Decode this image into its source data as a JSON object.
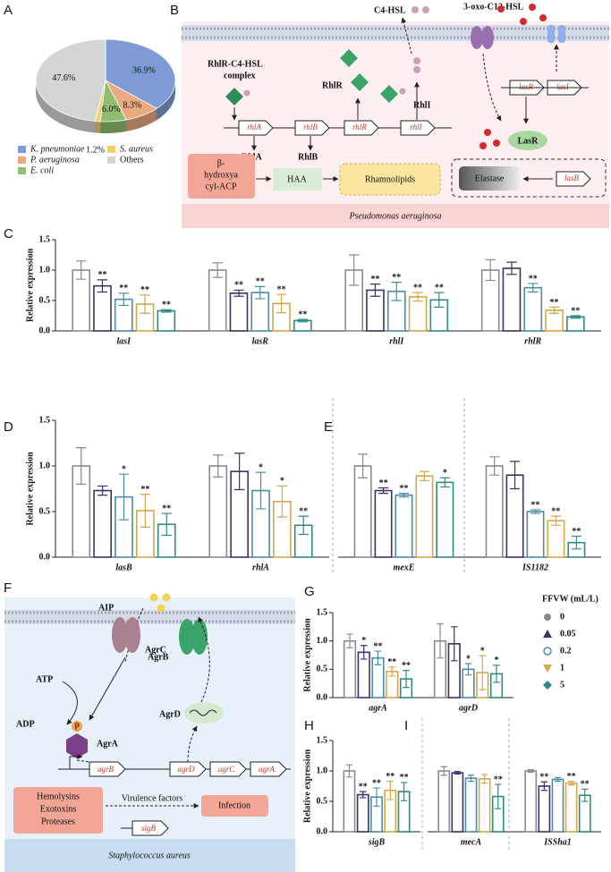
{
  "panels": [
    "A",
    "B",
    "C",
    "D",
    "E",
    "F",
    "G",
    "H",
    "I"
  ],
  "legend": {
    "title": "FFVW (mL/L)",
    "series": [
      {
        "name": "0",
        "color": "#8a8a8a",
        "marker": "circle"
      },
      {
        "name": "0.05",
        "color": "#3f3068",
        "marker": "triangle"
      },
      {
        "name": "0.2",
        "color": "#4b8ca8",
        "marker": "open-circle"
      },
      {
        "name": "1",
        "color": "#d6a64a",
        "marker": "triangle-down"
      },
      {
        "name": "5",
        "color": "#2f8a86",
        "marker": "diamond"
      }
    ]
  },
  "chart_data": [
    {
      "type": "pie",
      "categories": [
        "K. pneumoniae",
        "P. aeruginosa",
        "E. coli",
        "S. aureus",
        "Others"
      ],
      "values": [
        36.9,
        8.3,
        6.0,
        1.2,
        47.6
      ],
      "value_labels": [
        "36.9%",
        "8.3%",
        "6.0%",
        "1.2%",
        "47.6%"
      ],
      "colors": [
        "#7f9bd6",
        "#e9aa7e",
        "#90bd71",
        "#f1d06b",
        "#d4d4d4"
      ]
    },
    {
      "type": "bar",
      "ylabel": "Relative expression",
      "ylim": [
        0,
        1.5
      ],
      "yticks": [
        {
          "value": 0,
          "label": "0.0"
        },
        0.5,
        {
          "value": 1,
          "label": "1.0"
        },
        1.5
      ],
      "categories": [
        "lasI",
        "lasR",
        "rhlI",
        "rhlR"
      ],
      "series": [
        {
          "values": [
            1.0,
            1.0,
            1.0,
            1.0
          ],
          "errors": [
            0.15,
            0.12,
            0.25,
            0.17
          ],
          "significance": [
            null,
            null,
            null,
            null
          ]
        },
        {
          "values": [
            0.74,
            0.62,
            0.67,
            1.03
          ],
          "errors": [
            0.1,
            0.05,
            0.1,
            0.1
          ],
          "significance": [
            "**",
            "**",
            "**",
            null
          ]
        },
        {
          "values": [
            0.52,
            0.63,
            0.65,
            0.71
          ],
          "errors": [
            0.1,
            0.1,
            0.15,
            0.07
          ],
          "significance": [
            "**",
            "**",
            "**",
            "**"
          ]
        },
        {
          "values": [
            0.44,
            0.45,
            0.56,
            0.34
          ],
          "errors": [
            0.15,
            0.15,
            0.07,
            0.05
          ],
          "significance": [
            "**",
            "**",
            "**",
            "**"
          ]
        },
        {
          "values": [
            0.33,
            0.17,
            0.51,
            0.23
          ],
          "errors": [
            0.02,
            0.02,
            0.12,
            0.02
          ],
          "significance": [
            "**",
            "**",
            "**",
            "**"
          ]
        }
      ]
    },
    {
      "type": "bar",
      "ylabel": "Relative expression",
      "ylim": [
        0,
        1.5
      ],
      "yticks": [
        {
          "value": 0,
          "label": "0.0"
        },
        0.5,
        {
          "value": 1,
          "label": "1.0"
        },
        1.5
      ],
      "categories": [
        "lasB",
        "rhlA"
      ],
      "series": [
        {
          "values": [
            1.0,
            1.0
          ],
          "errors": [
            0.2,
            0.12
          ],
          "significance": [
            null,
            null
          ]
        },
        {
          "values": [
            0.73,
            0.94
          ],
          "errors": [
            0.05,
            0.2
          ],
          "significance": [
            null,
            null
          ]
        },
        {
          "values": [
            0.66,
            0.73
          ],
          "errors": [
            0.25,
            0.2
          ],
          "significance": [
            "*",
            "*"
          ]
        },
        {
          "values": [
            0.51,
            0.61
          ],
          "errors": [
            0.18,
            0.17
          ],
          "significance": [
            "**",
            "*"
          ]
        },
        {
          "values": [
            0.36,
            0.35
          ],
          "errors": [
            0.12,
            0.1
          ],
          "significance": [
            "**",
            "**"
          ]
        }
      ]
    },
    {
      "type": "bar",
      "ylim": [
        0,
        1.5
      ],
      "categories": [
        "mexE",
        "IS1182"
      ],
      "series": [
        {
          "values": [
            1.0,
            1.0
          ],
          "errors": [
            0.13,
            0.1
          ],
          "significance": [
            null,
            null
          ]
        },
        {
          "values": [
            0.73,
            0.9
          ],
          "errors": [
            0.03,
            0.15
          ],
          "significance": [
            "**",
            null
          ]
        },
        {
          "values": [
            0.68,
            0.5
          ],
          "errors": [
            0.02,
            0.02
          ],
          "significance": [
            "**",
            "**"
          ]
        },
        {
          "values": [
            0.89,
            0.4
          ],
          "errors": [
            0.05,
            0.05
          ],
          "significance": [
            null,
            "**"
          ]
        },
        {
          "values": [
            0.82,
            0.16
          ],
          "errors": [
            0.05,
            0.07
          ],
          "significance": [
            "*",
            "**"
          ]
        }
      ]
    },
    {
      "type": "bar",
      "ylabel": "Relative expression",
      "ylim": [
        0,
        1.5
      ],
      "yticks": [
        {
          "value": 0,
          "label": "0.0"
        },
        0.5,
        {
          "value": 1,
          "label": "1.0"
        },
        1.5
      ],
      "categories": [
        "agrA",
        "agrD"
      ],
      "series": [
        {
          "values": [
            1.0,
            1.0
          ],
          "errors": [
            0.12,
            0.3
          ],
          "significance": [
            null,
            null
          ]
        },
        {
          "values": [
            0.8,
            0.95
          ],
          "errors": [
            0.12,
            0.3
          ],
          "significance": [
            "*",
            null
          ]
        },
        {
          "values": [
            0.7,
            0.5
          ],
          "errors": [
            0.12,
            0.1
          ],
          "significance": [
            "**",
            "*"
          ]
        },
        {
          "values": [
            0.46,
            0.44
          ],
          "errors": [
            0.08,
            0.3
          ],
          "significance": [
            "**",
            "*"
          ]
        },
        {
          "values": [
            0.33,
            0.42
          ],
          "errors": [
            0.15,
            0.15
          ],
          "significance": [
            "**",
            "*"
          ]
        }
      ]
    },
    {
      "type": "bar",
      "ylabel": "Relative expression",
      "ylim": [
        0,
        1.5
      ],
      "yticks": [
        {
          "value": 0,
          "label": "0.0"
        },
        0.5,
        {
          "value": 1,
          "label": "1.0"
        },
        1.5
      ],
      "categories": [
        "sigB"
      ],
      "series": [
        {
          "values": [
            1.0
          ],
          "errors": [
            0.1
          ],
          "significance": [
            null
          ]
        },
        {
          "values": [
            0.61
          ],
          "errors": [
            0.05
          ],
          "significance": [
            "**"
          ]
        },
        {
          "values": [
            0.57
          ],
          "errors": [
            0.15
          ],
          "significance": [
            "**"
          ]
        },
        {
          "values": [
            0.68
          ],
          "errors": [
            0.15
          ],
          "significance": [
            "**"
          ]
        },
        {
          "values": [
            0.66
          ],
          "errors": [
            0.15
          ],
          "significance": [
            "**"
          ]
        }
      ]
    },
    {
      "type": "bar",
      "ylim": [
        0,
        1.5
      ],
      "categories": [
        "mecA",
        "ISSha1"
      ],
      "series": [
        {
          "values": [
            1.0,
            1.0
          ],
          "errors": [
            0.07,
            0.02
          ],
          "significance": [
            null,
            null
          ]
        },
        {
          "values": [
            0.97,
            0.75
          ],
          "errors": [
            0.02,
            0.07
          ],
          "significance": [
            null,
            "**"
          ]
        },
        {
          "values": [
            0.88,
            0.86
          ],
          "errors": [
            0.05,
            0.03
          ],
          "significance": [
            null,
            null
          ]
        },
        {
          "values": [
            0.87,
            0.8
          ],
          "errors": [
            0.07,
            0.03
          ],
          "significance": [
            null,
            "**"
          ]
        },
        {
          "values": [
            0.58,
            0.6
          ],
          "errors": [
            0.2,
            0.1
          ],
          "significance": [
            "**",
            "**"
          ]
        }
      ]
    }
  ],
  "diagram_b": {
    "c4": "C4-HSL",
    "c12": "3-oxo-C12-HSL",
    "complex": [
      "RhlR-C4-HSL",
      "complex"
    ],
    "rhlr_protein": "RhlR",
    "rhli_protein": "RhlI",
    "genes": [
      "rhlA",
      "rhlB",
      "rhlR",
      "rhlI"
    ],
    "rhla_protein": "RhlA",
    "rhlb_protein": "RhlB",
    "las_genes": [
      "lasR",
      "lasI"
    ],
    "lasr_protein": "LasR",
    "acp": [
      "β-",
      "hydroxya",
      "cyl-ACP"
    ],
    "haa": "HAA",
    "rhamnolipids": "Rhamnolipids",
    "elastase": "Elastase",
    "lasb": "lasB",
    "organism": "Pseudomonas aeruginosa"
  },
  "diagram_f": {
    "aip": "AIP",
    "agrc": "AgrC",
    "atp": "ATP",
    "adp": "ADP",
    "p": "P",
    "agra": "AgrA",
    "agrb": "AgrB",
    "agrd": "AgrD",
    "genes": [
      "agrB",
      "agrD",
      "agrC",
      "agrA"
    ],
    "factors": [
      "Hemolysins",
      "Exotoxins",
      "Proteases"
    ],
    "virulence": "Virulence factors",
    "infection": "Infection",
    "sigb": "sigB",
    "organism": "Staphylococcus aureus"
  }
}
